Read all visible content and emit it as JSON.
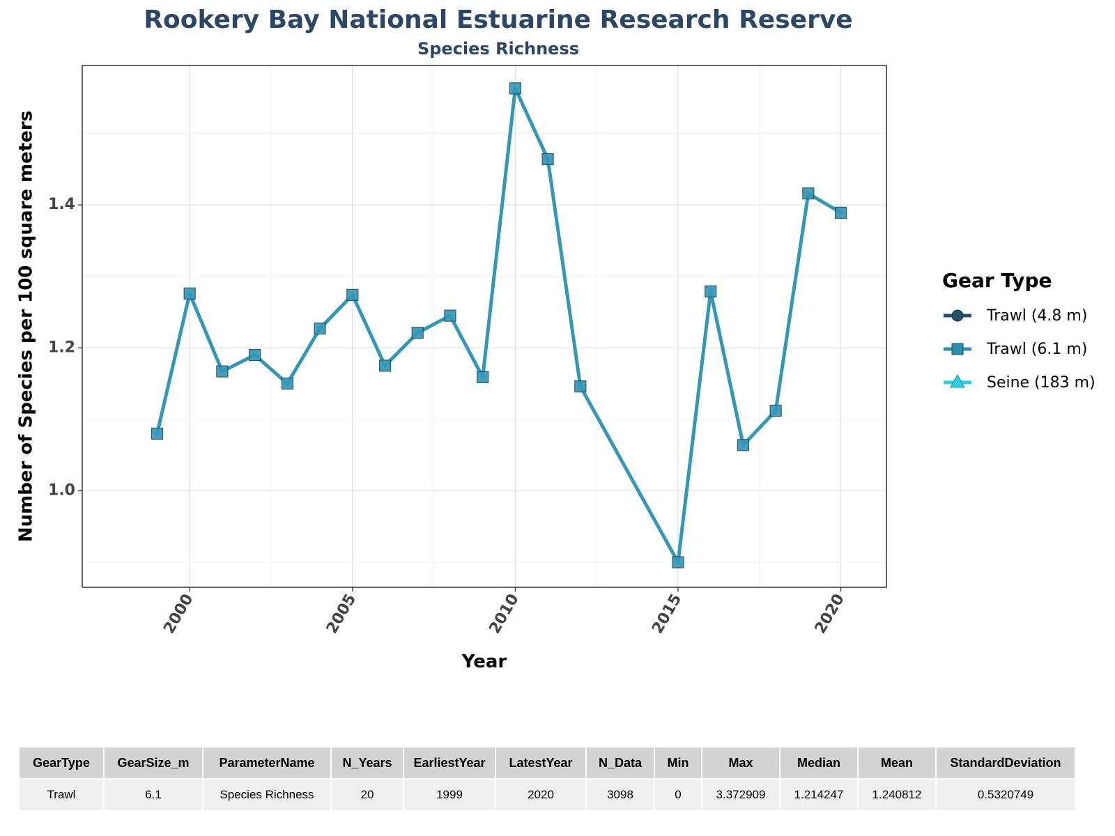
{
  "chart_data": {
    "type": "line",
    "title": "Rookery Bay National Estuarine Research Reserve",
    "subtitle": "Species Richness",
    "xlabel": "Year",
    "ylabel": "Number of Species per 100 square meters",
    "x_ticks": [
      "2000",
      "2005",
      "2010",
      "2015",
      "2020"
    ],
    "y_ticks": [
      "1.0",
      "1.2",
      "1.4"
    ],
    "xlim": [
      1996.7,
      2021.4
    ],
    "ylim": [
      0.865,
      1.595
    ],
    "grid": true,
    "legend_position": "right",
    "legend_title": "Gear Type",
    "legend": [
      {
        "name": "Trawl (4.8 m)",
        "marker": "circle",
        "color": "#24506b"
      },
      {
        "name": "Trawl (6.1 m)",
        "marker": "square",
        "color": "#2b8fb0"
      },
      {
        "name": "Seine (183 m)",
        "marker": "triangle",
        "color": "#2ad0e6"
      }
    ],
    "series": [
      {
        "name": "Trawl (6.1 m)",
        "color": "#3398b8",
        "x": [
          1999,
          2000,
          2001,
          2002,
          2003,
          2004,
          2005,
          2006,
          2007,
          2008,
          2009,
          2010,
          2011,
          2012,
          2015,
          2016,
          2017,
          2018,
          2019,
          2020
        ],
        "y": [
          1.08,
          1.276,
          1.167,
          1.19,
          1.15,
          1.227,
          1.274,
          1.175,
          1.221,
          1.245,
          1.159,
          1.563,
          1.464,
          1.146,
          0.9,
          1.279,
          1.064,
          1.112,
          1.416,
          1.389
        ]
      }
    ]
  },
  "table": {
    "headers": [
      "GearType",
      "GearSize_m",
      "ParameterName",
      "N_Years",
      "EarliestYear",
      "LatestYear",
      "N_Data",
      "Min",
      "Max",
      "Median",
      "Mean",
      "StandardDeviation"
    ],
    "rows": [
      [
        "Trawl",
        "6.1",
        "Species Richness",
        "20",
        "1999",
        "2020",
        "3098",
        "0",
        "3.372909",
        "1.214247",
        "1.240812",
        "0.5320749"
      ]
    ]
  }
}
